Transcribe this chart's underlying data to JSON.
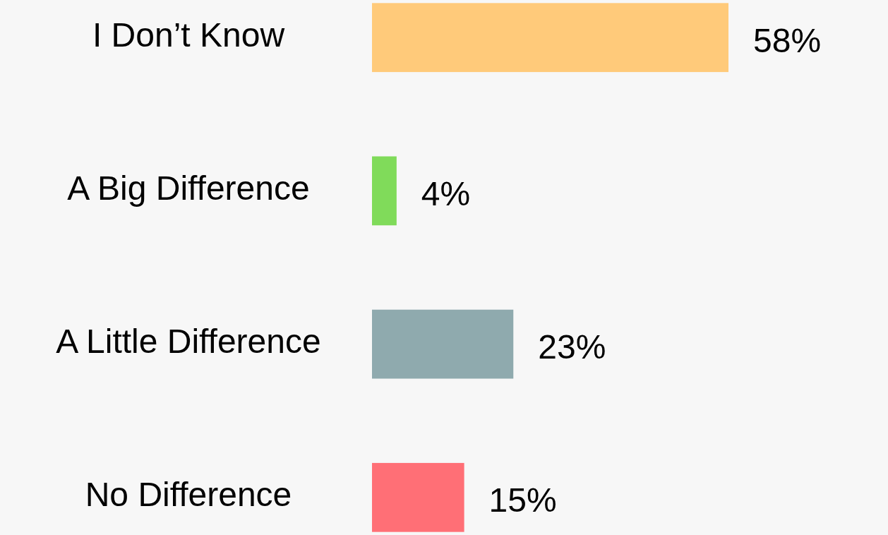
{
  "chart_data": {
    "type": "bar",
    "orientation": "horizontal",
    "categories": [
      "I Don’t Know",
      "A Big Difference",
      "A Little Difference",
      "No Difference"
    ],
    "values": [
      58,
      4,
      23,
      15
    ],
    "colors": [
      "#ffca7a",
      "#80db5a",
      "#8faaae",
      "#ff6f76"
    ],
    "value_labels": [
      "58%",
      "4%",
      "23%",
      "15%"
    ]
  }
}
